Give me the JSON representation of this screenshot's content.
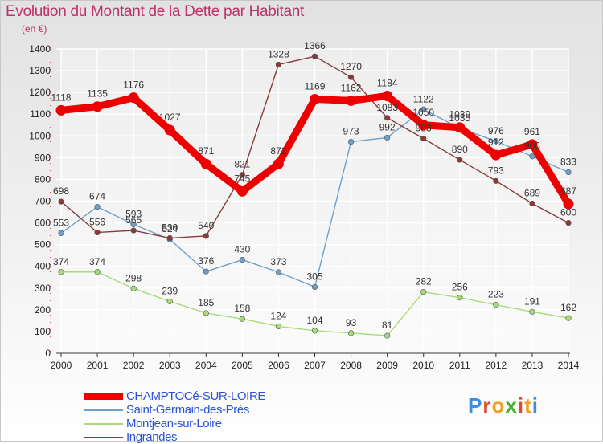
{
  "title": "Evolution du Montant de la Dette par Habitant",
  "unit_label": "(en €)",
  "logo": {
    "text": "Proxiti",
    "colors": [
      "#3a8ee0",
      "#e04a2a",
      "#f0a020",
      "#4ab030",
      "#e04a2a",
      "#f0a020",
      "#3a8ee0"
    ]
  },
  "chart_data": {
    "type": "line",
    "title": "Evolution du Montant de la Dette par Habitant",
    "ylabel": "(en €)",
    "xlabel": "",
    "ylim": [
      0,
      1400
    ],
    "yticks": [
      0,
      100,
      200,
      300,
      400,
      500,
      600,
      700,
      800,
      900,
      1000,
      1100,
      1200,
      1300,
      1400
    ],
    "grid": true,
    "legend_position": "bottom-left",
    "x": [
      "2000",
      "2001",
      "2002",
      "2003",
      "2004",
      "2005",
      "2006",
      "2007",
      "2008",
      "2009",
      "2010",
      "2011",
      "2012",
      "2013",
      "2014"
    ],
    "series": [
      {
        "name": "CHAMPTOCé-SUR-LOIRE",
        "color": "#ee0000",
        "bold": true,
        "values": [
          1118,
          1135,
          1176,
          1027,
          871,
          745,
          872,
          1169,
          1162,
          1184,
          1050,
          1039,
          912,
          961,
          687
        ]
      },
      {
        "name": "Saint-Germain-des-Prés",
        "color": "#6ea0cc",
        "bold": false,
        "values": [
          553,
          674,
          593,
          524,
          376,
          430,
          373,
          305,
          973,
          992,
          1122,
          1035,
          976,
          906,
          833
        ]
      },
      {
        "name": "Montjean-sur-Loire",
        "color": "#a6dc78",
        "bold": false,
        "values": [
          374,
          374,
          298,
          239,
          185,
          158,
          124,
          104,
          93,
          81,
          282,
          256,
          223,
          191,
          162
        ]
      },
      {
        "name": "Ingrandes",
        "color": "#8a3a3a",
        "bold": false,
        "values": [
          698,
          556,
          565,
          530,
          540,
          821,
          1328,
          1366,
          1270,
          1083,
          988,
          890,
          793,
          689,
          600
        ]
      }
    ]
  }
}
